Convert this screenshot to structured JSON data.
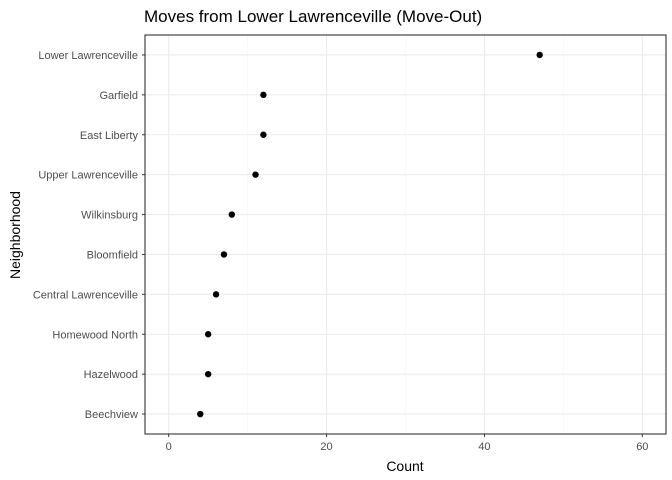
{
  "chart_data": {
    "type": "scatter",
    "title": "Moves from Lower Lawrenceville (Move-Out)",
    "xlabel": "Count",
    "ylabel": "Neighborhood",
    "xlim": [
      -3,
      63
    ],
    "x_ticks": [
      0,
      20,
      40,
      60
    ],
    "x_minor_ticks": [
      10,
      30,
      50
    ],
    "grid": true,
    "categories": [
      "Lower Lawrenceville",
      "Garfield",
      "East Liberty",
      "Upper Lawrenceville",
      "Wilkinsburg",
      "Bloomfield",
      "Central Lawrenceville",
      "Homewood North",
      "Hazelwood",
      "Beechview"
    ],
    "values": [
      47,
      12,
      12,
      11,
      8,
      7,
      6,
      5,
      5,
      4
    ]
  },
  "style": {
    "point_color": "#000000",
    "panel_border": "#333333",
    "grid_major": "#ebebeb",
    "grid_minor": "#f5f5f5"
  }
}
